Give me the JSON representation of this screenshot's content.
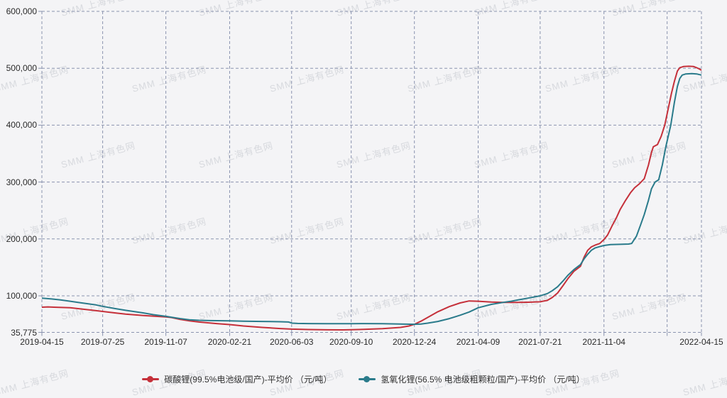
{
  "watermark": {
    "text": "SMM 上海有色网"
  },
  "colors": {
    "background": "#f4f4f6",
    "gridline": "#8a93af",
    "axis_text": "#2a2a2a",
    "series_red": "#c5303a",
    "series_teal": "#2a7b8b"
  },
  "legend": {
    "items": [
      {
        "label": "碳酸锂(99.5%电池级/国产)-平均价 （元/吨）",
        "color": "#c5303a",
        "marker": "line-dot-marker"
      },
      {
        "label": "氢氧化锂(56.5% 电池级粗颗粒/国产)-平均价 （元/吨）",
        "color": "#2a7b8b",
        "marker": "line-dot-marker"
      }
    ]
  },
  "chart_data": {
    "type": "line",
    "title": "",
    "xlabel": "",
    "ylabel": "",
    "grid": "dashed",
    "legend_position": "bottom-center",
    "ylim": [
      35775,
      600000
    ],
    "x_unit": "days from 2019-04-15",
    "xlim_days": [
      0,
      1096
    ],
    "y_axis": {
      "tick_labels": [
        "600,000",
        "500,000",
        "400,000",
        "300,000",
        "200,000",
        "100,000",
        "35,775"
      ],
      "tick_values": [
        600000,
        500000,
        400000,
        300000,
        200000,
        100000,
        35775
      ]
    },
    "x_axis": {
      "ticks": [
        {
          "label": "2019-04-15",
          "day": 0
        },
        {
          "label": "2019-07-25",
          "day": 101
        },
        {
          "label": "2019-11-07",
          "day": 206
        },
        {
          "label": "2020-02-21",
          "day": 312
        },
        {
          "label": "2020-06-03",
          "day": 415
        },
        {
          "label": "2020-09-10",
          "day": 514
        },
        {
          "label": "2020-12-24",
          "day": 619
        },
        {
          "label": "2021-04-09",
          "day": 725
        },
        {
          "label": "2021-07-21",
          "day": 828
        },
        {
          "label": "2021-11-04",
          "day": 934
        },
        {
          "label": "",
          "day": 1039
        },
        {
          "label": "2022-04-15",
          "day": 1096
        }
      ]
    },
    "series": [
      {
        "name": "碳酸锂(99.5%电池级/国产)-平均价 （元/吨）",
        "color": "#c5303a",
        "points": [
          [
            0,
            80000
          ],
          [
            10,
            80500
          ],
          [
            20,
            80000
          ],
          [
            47,
            79000
          ],
          [
            60,
            77500
          ],
          [
            77,
            75500
          ],
          [
            101,
            72500
          ],
          [
            122,
            70000
          ],
          [
            139,
            68000
          ],
          [
            169,
            65500
          ],
          [
            190,
            64000
          ],
          [
            206,
            63000
          ],
          [
            215,
            62000
          ],
          [
            230,
            58500
          ],
          [
            245,
            56000
          ],
          [
            261,
            54000
          ],
          [
            292,
            51000
          ],
          [
            312,
            49500
          ],
          [
            335,
            47000
          ],
          [
            366,
            44500
          ],
          [
            396,
            42500
          ],
          [
            415,
            41500
          ],
          [
            443,
            40800
          ],
          [
            474,
            40300
          ],
          [
            500,
            40200
          ],
          [
            514,
            40500
          ],
          [
            535,
            41000
          ],
          [
            566,
            42200
          ],
          [
            596,
            44500
          ],
          [
            610,
            47000
          ],
          [
            619,
            50000
          ],
          [
            630,
            55500
          ],
          [
            641,
            62000
          ],
          [
            658,
            72000
          ],
          [
            677,
            81000
          ],
          [
            695,
            87500
          ],
          [
            710,
            91000
          ],
          [
            725,
            90500
          ],
          [
            747,
            89000
          ],
          [
            767,
            88500
          ],
          [
            792,
            88500
          ],
          [
            808,
            88800
          ],
          [
            828,
            89500
          ],
          [
            840,
            92000
          ],
          [
            848,
            97000
          ],
          [
            857,
            105000
          ],
          [
            866,
            118000
          ],
          [
            874,
            130000
          ],
          [
            884,
            143000
          ],
          [
            895,
            152000
          ],
          [
            901,
            168000
          ],
          [
            907,
            180000
          ],
          [
            913,
            186000
          ],
          [
            919,
            189000
          ],
          [
            927,
            192000
          ],
          [
            934,
            199000
          ],
          [
            940,
            207000
          ],
          [
            947,
            222000
          ],
          [
            955,
            238000
          ],
          [
            961,
            252000
          ],
          [
            970,
            268000
          ],
          [
            978,
            281000
          ],
          [
            985,
            290000
          ],
          [
            993,
            297000
          ],
          [
            1001,
            306000
          ],
          [
            1008,
            330000
          ],
          [
            1013,
            352000
          ],
          [
            1016,
            362000
          ],
          [
            1023,
            366000
          ],
          [
            1029,
            380000
          ],
          [
            1035,
            400000
          ],
          [
            1041,
            430000
          ],
          [
            1046,
            455000
          ],
          [
            1051,
            477000
          ],
          [
            1056,
            495000
          ],
          [
            1060,
            501000
          ],
          [
            1066,
            503000
          ],
          [
            1075,
            503500
          ],
          [
            1083,
            503000
          ],
          [
            1088,
            501000
          ],
          [
            1092,
            499000
          ],
          [
            1096,
            496500
          ]
        ]
      },
      {
        "name": "氢氧化锂(56.5% 电池级粗颗粒/国产)-平均价 （元/吨）",
        "color": "#2a7b8b",
        "points": [
          [
            0,
            96000
          ],
          [
            16,
            94500
          ],
          [
            30,
            93000
          ],
          [
            47,
            90500
          ],
          [
            60,
            88500
          ],
          [
            77,
            86000
          ],
          [
            90,
            84000
          ],
          [
            101,
            81500
          ],
          [
            122,
            77500
          ],
          [
            139,
            74500
          ],
          [
            155,
            72000
          ],
          [
            169,
            70000
          ],
          [
            185,
            67000
          ],
          [
            206,
            64000
          ],
          [
            215,
            62500
          ],
          [
            230,
            60000
          ],
          [
            245,
            58000
          ],
          [
            261,
            57000
          ],
          [
            280,
            56500
          ],
          [
            312,
            56000
          ],
          [
            335,
            55500
          ],
          [
            366,
            55000
          ],
          [
            396,
            54500
          ],
          [
            410,
            54000
          ],
          [
            416,
            52000
          ],
          [
            425,
            51500
          ],
          [
            443,
            51200
          ],
          [
            474,
            51000
          ],
          [
            514,
            51000
          ],
          [
            535,
            51200
          ],
          [
            566,
            51000
          ],
          [
            596,
            50500
          ],
          [
            619,
            50000
          ],
          [
            630,
            50500
          ],
          [
            641,
            52000
          ],
          [
            658,
            55000
          ],
          [
            677,
            60000
          ],
          [
            695,
            66000
          ],
          [
            710,
            71500
          ],
          [
            725,
            79000
          ],
          [
            747,
            85000
          ],
          [
            767,
            88500
          ],
          [
            780,
            90500
          ],
          [
            792,
            93000
          ],
          [
            808,
            96000
          ],
          [
            828,
            100000
          ],
          [
            840,
            104000
          ],
          [
            848,
            109000
          ],
          [
            857,
            116000
          ],
          [
            866,
            126000
          ],
          [
            874,
            136000
          ],
          [
            884,
            146000
          ],
          [
            895,
            155000
          ],
          [
            901,
            165000
          ],
          [
            907,
            173000
          ],
          [
            913,
            180000
          ],
          [
            919,
            184000
          ],
          [
            927,
            186500
          ],
          [
            934,
            188500
          ],
          [
            945,
            190000
          ],
          [
            961,
            190500
          ],
          [
            975,
            191000
          ],
          [
            980,
            192000
          ],
          [
            988,
            205000
          ],
          [
            995,
            225000
          ],
          [
            1001,
            243000
          ],
          [
            1008,
            268000
          ],
          [
            1013,
            288000
          ],
          [
            1019,
            300000
          ],
          [
            1025,
            304000
          ],
          [
            1031,
            330000
          ],
          [
            1037,
            363000
          ],
          [
            1045,
            400000
          ],
          [
            1051,
            440000
          ],
          [
            1056,
            468000
          ],
          [
            1060,
            482000
          ],
          [
            1064,
            488000
          ],
          [
            1070,
            490000
          ],
          [
            1080,
            490500
          ],
          [
            1088,
            490000
          ],
          [
            1096,
            488000
          ]
        ]
      }
    ]
  }
}
